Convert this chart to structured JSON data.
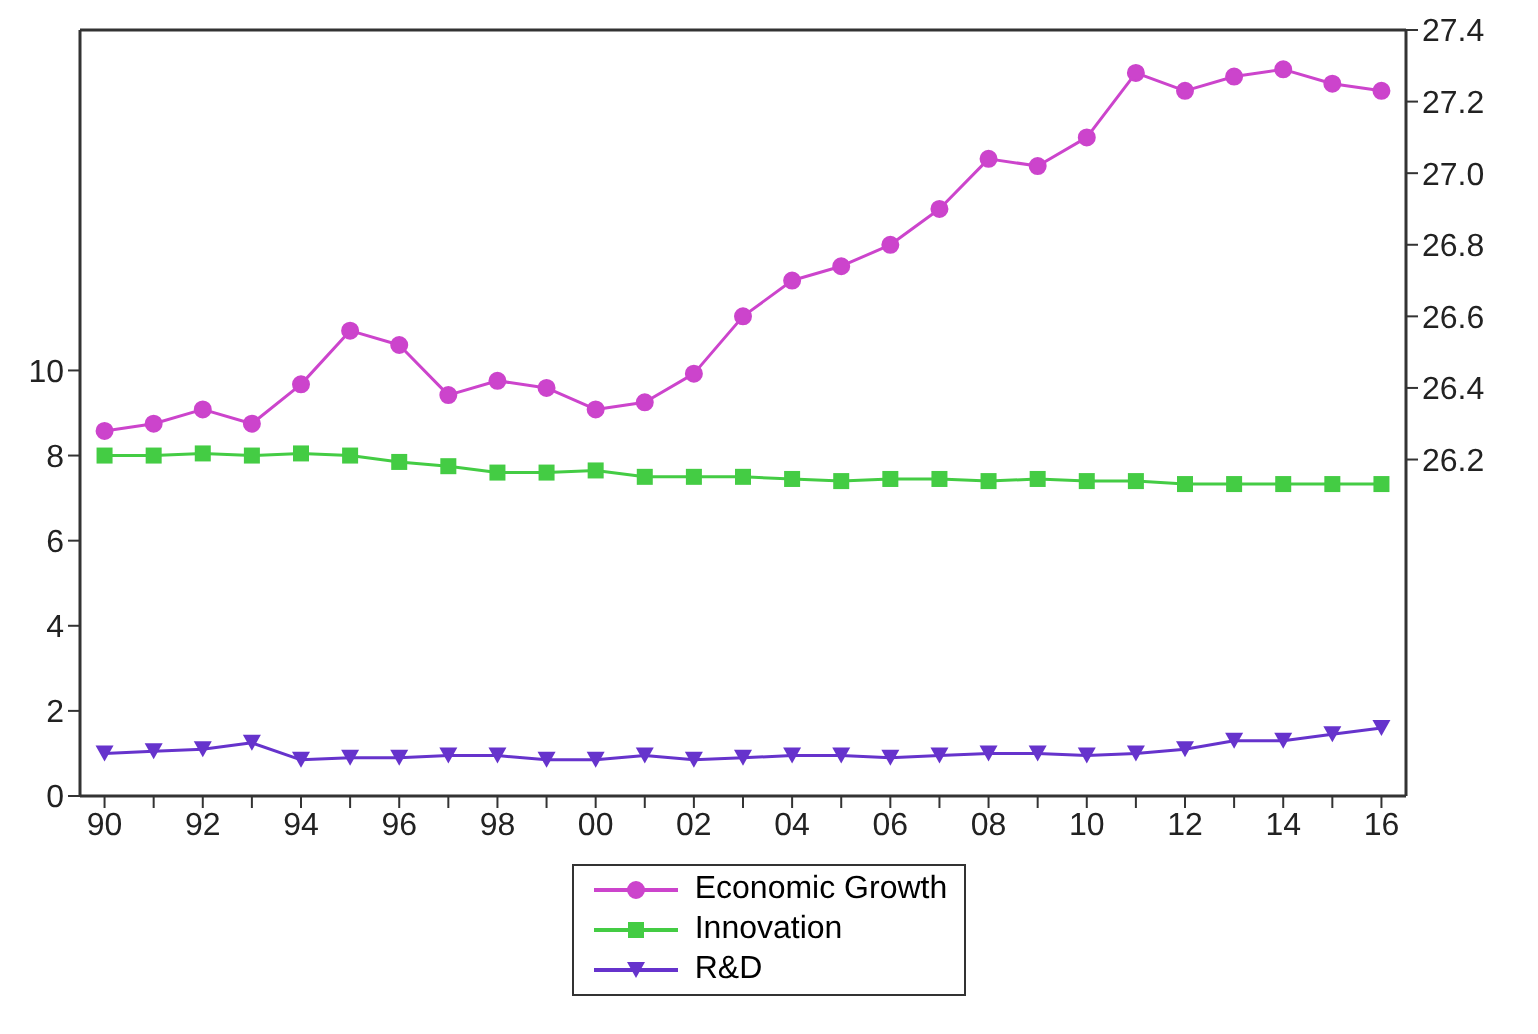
{
  "chart_data": {
    "type": "line",
    "x": [
      1990,
      1991,
      1992,
      1993,
      1994,
      1995,
      1996,
      1997,
      1998,
      1999,
      2000,
      2001,
      2002,
      2003,
      2004,
      2005,
      2006,
      2007,
      2008,
      2009,
      2010,
      2011,
      2012,
      2013,
      2014,
      2015,
      2016
    ],
    "series": [
      {
        "name": "Economic Growth",
        "color": "#cc44cc",
        "axis": "y2",
        "marker": "circle",
        "values": [
          26.28,
          26.3,
          26.34,
          26.3,
          26.41,
          26.56,
          26.52,
          26.38,
          26.42,
          26.4,
          26.34,
          26.36,
          26.44,
          26.6,
          26.7,
          26.74,
          26.8,
          26.9,
          27.04,
          27.02,
          27.1,
          27.28,
          27.23,
          27.27,
          27.29,
          27.25,
          27.23
        ]
      },
      {
        "name": "Innovation",
        "color": "#44cc44",
        "marker": "square",
        "values": [
          8.0,
          8.0,
          8.05,
          8.0,
          8.05,
          8.0,
          7.85,
          7.75,
          7.6,
          7.6,
          7.65,
          7.5,
          7.5,
          7.5,
          7.45,
          7.4,
          7.45,
          7.45,
          7.4,
          7.45,
          7.4,
          7.4,
          7.33,
          7.33,
          7.33,
          7.33,
          7.33
        ]
      },
      {
        "name": "R&D",
        "color": "#6633cc",
        "marker": "triangle",
        "values": [
          1.0,
          1.05,
          1.1,
          1.25,
          0.85,
          0.9,
          0.9,
          0.95,
          0.95,
          0.85,
          0.85,
          0.95,
          0.85,
          0.9,
          0.95,
          0.95,
          0.9,
          0.95,
          1.0,
          1.0,
          0.95,
          1.0,
          1.1,
          1.3,
          1.3,
          1.45,
          1.6
        ]
      }
    ],
    "xlim": [
      1989.5,
      2016.5
    ],
    "xticks": [
      {
        "value": 1990,
        "label": "90"
      },
      {
        "value": 1991,
        "label": null
      },
      {
        "value": 1992,
        "label": "92"
      },
      {
        "value": 1993,
        "label": null
      },
      {
        "value": 1994,
        "label": "94"
      },
      {
        "value": 1995,
        "label": null
      },
      {
        "value": 1996,
        "label": "96"
      },
      {
        "value": 1997,
        "label": null
      },
      {
        "value": 1998,
        "label": "98"
      },
      {
        "value": 1999,
        "label": null
      },
      {
        "value": 2000,
        "label": "00"
      },
      {
        "value": 2001,
        "label": null
      },
      {
        "value": 2002,
        "label": "02"
      },
      {
        "value": 2003,
        "label": null
      },
      {
        "value": 2004,
        "label": "04"
      },
      {
        "value": 2005,
        "label": null
      },
      {
        "value": 2006,
        "label": "06"
      },
      {
        "value": 2007,
        "label": null
      },
      {
        "value": 2008,
        "label": "08"
      },
      {
        "value": 2009,
        "label": null
      },
      {
        "value": 2010,
        "label": "10"
      },
      {
        "value": 2011,
        "label": null
      },
      {
        "value": 2012,
        "label": "12"
      },
      {
        "value": 2013,
        "label": null
      },
      {
        "value": 2014,
        "label": "14"
      },
      {
        "value": 2015,
        "label": null
      },
      {
        "value": 2016,
        "label": "16"
      }
    ],
    "ylim": [
      0,
      18
    ],
    "yticks": [
      0,
      2,
      4,
      6,
      8,
      10
    ],
    "y2lim": [
      25.26,
      27.4
    ],
    "y2ticks": [
      26.2,
      26.4,
      26.6,
      26.8,
      {
        "value": 27.0,
        "label": "27.0"
      },
      27.2,
      27.4
    ],
    "legend": "bottom",
    "line_style": "solid"
  }
}
